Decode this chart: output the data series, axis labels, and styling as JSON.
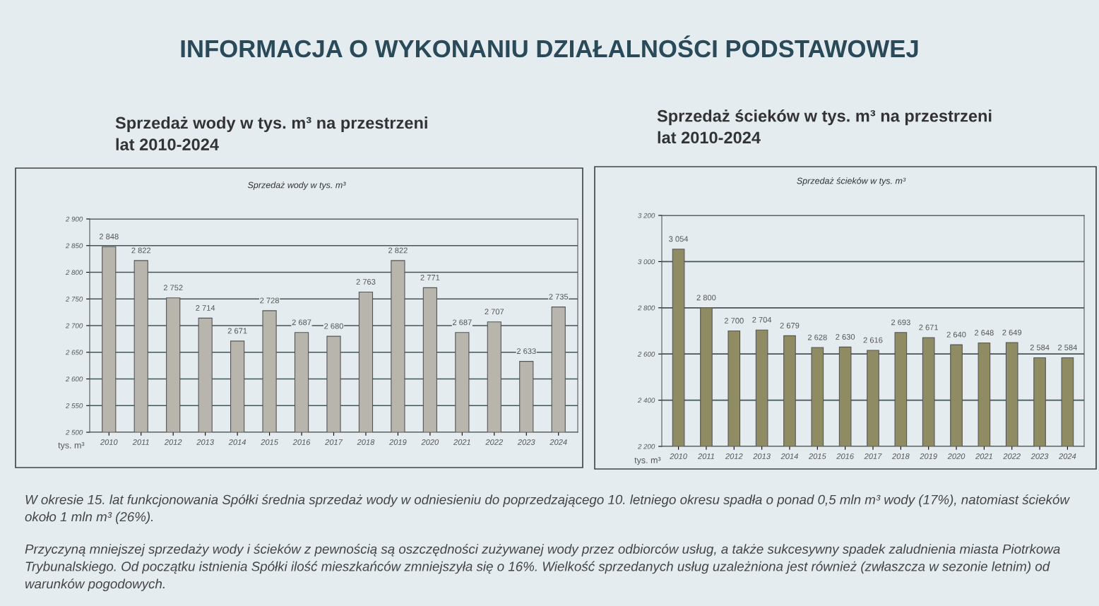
{
  "chart_data": [
    {
      "type": "bar",
      "title": "Sprzedaż wody w tys. m³ na przestrzeni\nlat 2010-2024",
      "subtitle": "Sprzedaż wody w tys. m³",
      "ylabel": "tys. m³",
      "categories": [
        "2010",
        "2011",
        "2012",
        "2013",
        "2014",
        "2015",
        "2016",
        "2017",
        "2018",
        "2019",
        "2020",
        "2021",
        "2022",
        "2023",
        "2024"
      ],
      "values": [
        2848,
        2822,
        2752,
        2714,
        2671,
        2728,
        2687,
        2680,
        2763,
        2822,
        2771,
        2687,
        2707,
        2633,
        2735
      ],
      "value_labels": [
        "2 848",
        "2 822",
        "2 752",
        "2 714",
        "2 671",
        "2 728",
        "2 687",
        "2 680",
        "2 763",
        "2 822",
        "2 771",
        "2 687",
        "2 707",
        "2 633",
        "2 735"
      ],
      "color": "#b8b6ac",
      "ylim": [
        2500,
        2900
      ],
      "yticks": [
        {
          "value": 2500,
          "label": "2 500"
        },
        {
          "value": 2550,
          "label": "2 550"
        },
        {
          "value": 2600,
          "label": "2 600"
        },
        {
          "value": 2650,
          "label": "2 650"
        },
        {
          "value": 2700,
          "label": "2 700"
        },
        {
          "value": 2750,
          "label": "2 750"
        },
        {
          "value": 2800,
          "label": "2 800"
        },
        {
          "value": 2850,
          "label": "2 850"
        },
        {
          "value": 2900,
          "label": "2 900"
        }
      ],
      "grid": "y"
    },
    {
      "type": "bar",
      "title": "Sprzedaż ścieków w tys. m³ na przestrzeni\nlat 2010-2024",
      "subtitle": "Sprzedaż ścieków w tys. m³",
      "ylabel": "tys. m³",
      "categories": [
        "2010",
        "2011",
        "2012",
        "2013",
        "2014",
        "2015",
        "2016",
        "2017",
        "2018",
        "2019",
        "2020",
        "2021",
        "2022",
        "2023",
        "2024"
      ],
      "values": [
        3054,
        2800,
        2700,
        2704,
        2679,
        2628,
        2630,
        2616,
        2693,
        2671,
        2640,
        2648,
        2649,
        2584,
        2584
      ],
      "value_labels": [
        "3 054",
        "2 800",
        "2 700",
        "2 704",
        "2 679",
        "2 628",
        "2 630",
        "2 616",
        "2 693",
        "2 671",
        "2 640",
        "2 648",
        "2 649",
        "2 584",
        "2 584"
      ],
      "color": "#8f8b62",
      "ylim": [
        2200,
        3200
      ],
      "yticks": [
        {
          "value": 2200,
          "label": "2 200"
        },
        {
          "value": 2400,
          "label": "2 400"
        },
        {
          "value": 2600,
          "label": "2 600"
        },
        {
          "value": 2800,
          "label": "2 800"
        },
        {
          "value": 3000,
          "label": "3 000"
        },
        {
          "value": 3200,
          "label": "3 200"
        }
      ],
      "grid": "y"
    },
    {
      "type": "other",
      "title": "INFORMACJA O WYKONANIU DZIAŁALNOŚCI PODSTAWOWEJ",
      "annotations": [
        "W okresie 15. lat funkcjonowania Spółki średnia sprzedaż wody w odniesieniu do poprzedzającego 10. letniego okresu spadła o ponad 0,5 mln m³ wody (17%), natomiast ścieków około 1 mln m³ (26%).",
        "Przyczyną mniejszej sprzedaży wody i ścieków z pewnością są oszczędności zużywanej wody przez odbiorców usług, a także sukcesywny spadek zaludnienia miasta Piotrkowa Trybunalskiego. Od początku istnienia Spółki ilość mieszkańców zmniejszyła się o 16%. Wielkość sprzedanych usług uzależniona jest również (zwłaszcza w sezonie letnim) od warunków pogodowych."
      ]
    }
  ]
}
